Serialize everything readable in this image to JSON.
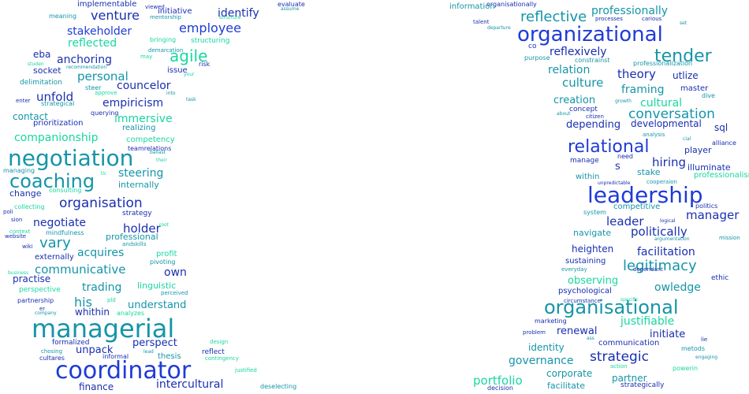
{
  "palette": {
    "blue": "#1f3bd6",
    "teal": "#1595a8",
    "mint": "#18d7a0",
    "navy": "#1a2fb0"
  },
  "words": [
    {
      "t": "implementable",
      "c": "navy"
    },
    {
      "t": "evaluate",
      "c": "navy"
    },
    {
      "t": "assume",
      "c": "teal"
    },
    {
      "t": "meaning",
      "c": "teal"
    },
    {
      "t": "mentorship",
      "c": "teal"
    },
    {
      "t": "viewed",
      "c": "navy"
    },
    {
      "t": "venture",
      "c": "navy"
    },
    {
      "t": "initiative",
      "c": "navy"
    },
    {
      "t": "identify",
      "c": "navy"
    },
    {
      "t": "structure",
      "c": "mint"
    },
    {
      "t": "employee",
      "c": "blue"
    },
    {
      "t": "stakeholder",
      "c": "blue"
    },
    {
      "t": "reflected",
      "c": "mint"
    },
    {
      "t": "bringing",
      "c": "mint"
    },
    {
      "t": "structuring",
      "c": "mint"
    },
    {
      "t": "agile",
      "c": "mint"
    },
    {
      "t": "eba",
      "c": "navy"
    },
    {
      "t": "demarcation",
      "c": "teal"
    },
    {
      "t": "anchoring",
      "c": "navy"
    },
    {
      "t": "may",
      "c": "mint"
    },
    {
      "t": "risk",
      "c": "navy"
    },
    {
      "t": "studen",
      "c": "mint"
    },
    {
      "t": "recommendation",
      "c": "teal"
    },
    {
      "t": "personal",
      "c": "teal"
    },
    {
      "t": "socket",
      "c": "navy"
    },
    {
      "t": "issue",
      "c": "navy"
    },
    {
      "t": "your",
      "c": "mint"
    },
    {
      "t": "delimitation",
      "c": "teal"
    },
    {
      "t": "councelor",
      "c": "navy"
    },
    {
      "t": "steer",
      "c": "teal"
    },
    {
      "t": "approve",
      "c": "mint"
    },
    {
      "t": "unfold",
      "c": "navy"
    },
    {
      "t": "into",
      "c": "teal"
    },
    {
      "t": "enter",
      "c": "navy"
    },
    {
      "t": "strategical",
      "c": "teal"
    },
    {
      "t": "empiricism",
      "c": "navy"
    },
    {
      "t": "task",
      "c": "teal"
    },
    {
      "t": "contact",
      "c": "teal"
    },
    {
      "t": "querying",
      "c": "navy"
    },
    {
      "t": "immersive",
      "c": "mint"
    },
    {
      "t": "prioritization",
      "c": "navy"
    },
    {
      "t": "realizing",
      "c": "teal"
    },
    {
      "t": "negotiation",
      "c": "teal"
    },
    {
      "t": "companionship",
      "c": "mint"
    },
    {
      "t": "competency",
      "c": "mint"
    },
    {
      "t": "teamrelations",
      "c": "navy"
    },
    {
      "t": "ballast",
      "c": "teal"
    },
    {
      "t": "coaching",
      "c": "teal"
    },
    {
      "t": "their",
      "c": "mint"
    },
    {
      "t": "managing",
      "c": "teal"
    },
    {
      "t": "steering",
      "c": "teal"
    },
    {
      "t": "tic",
      "c": "mint"
    },
    {
      "t": "internally",
      "c": "teal"
    },
    {
      "t": "change",
      "c": "navy"
    },
    {
      "t": "consulting",
      "c": "mint"
    },
    {
      "t": "organisation",
      "c": "navy"
    },
    {
      "t": "collecting",
      "c": "mint"
    },
    {
      "t": "poli",
      "c": "navy"
    },
    {
      "t": "strategy",
      "c": "navy"
    },
    {
      "t": "sion",
      "c": "navy"
    },
    {
      "t": "negotiate",
      "c": "navy"
    },
    {
      "t": "holder",
      "c": "navy"
    },
    {
      "t": "root",
      "c": "mint"
    },
    {
      "t": "context",
      "c": "mint"
    },
    {
      "t": "mindfulness",
      "c": "teal"
    },
    {
      "t": "website",
      "c": "navy"
    },
    {
      "t": "professional",
      "c": "teal"
    },
    {
      "t": "vary",
      "c": "teal"
    },
    {
      "t": "andskills",
      "c": "teal"
    },
    {
      "t": "acquires",
      "c": "teal"
    },
    {
      "t": "profit",
      "c": "mint"
    },
    {
      "t": "wiki",
      "c": "navy"
    },
    {
      "t": "externally",
      "c": "navy"
    },
    {
      "t": "pivoting",
      "c": "teal"
    },
    {
      "t": "communicative",
      "c": "teal"
    },
    {
      "t": "own",
      "c": "navy"
    },
    {
      "t": "business",
      "c": "mint"
    },
    {
      "t": "practise",
      "c": "navy"
    },
    {
      "t": "linguistic",
      "c": "mint"
    },
    {
      "t": "trading",
      "c": "teal"
    },
    {
      "t": "perspective",
      "c": "mint"
    },
    {
      "t": "perceived",
      "c": "teal"
    },
    {
      "t": "partnership",
      "c": "navy"
    },
    {
      "t": "his",
      "c": "teal"
    },
    {
      "t": "pld",
      "c": "mint"
    },
    {
      "t": "understand",
      "c": "teal"
    },
    {
      "t": "er",
      "c": "navy"
    },
    {
      "t": "company",
      "c": "teal"
    },
    {
      "t": "whithin",
      "c": "navy"
    },
    {
      "t": "analyzes",
      "c": "mint"
    },
    {
      "t": "managerial",
      "c": "teal"
    },
    {
      "t": "formalized",
      "c": "navy"
    },
    {
      "t": "perspect",
      "c": "navy"
    },
    {
      "t": "design",
      "c": "mint"
    },
    {
      "t": "chosing",
      "c": "teal"
    },
    {
      "t": "unpack",
      "c": "navy"
    },
    {
      "t": "lead",
      "c": "teal"
    },
    {
      "t": "reflect",
      "c": "navy"
    },
    {
      "t": "cultares",
      "c": "navy"
    },
    {
      "t": "informal",
      "c": "navy"
    },
    {
      "t": "thesis",
      "c": "teal"
    },
    {
      "t": "contingency",
      "c": "mint"
    },
    {
      "t": "coordinator",
      "c": "blue"
    },
    {
      "t": "justified",
      "c": "mint"
    },
    {
      "t": "intercultural",
      "c": "navy"
    },
    {
      "t": "finance",
      "c": "navy"
    },
    {
      "t": "deselecting",
      "c": "teal"
    },
    {
      "t": "organisationally",
      "c": "navy"
    },
    {
      "t": "information",
      "c": "teal"
    },
    {
      "t": "professionally",
      "c": "teal"
    },
    {
      "t": "talent",
      "c": "navy"
    },
    {
      "t": "departure",
      "c": "teal"
    },
    {
      "t": "reflective",
      "c": "teal"
    },
    {
      "t": "processes",
      "c": "navy"
    },
    {
      "t": "carious",
      "c": "navy"
    },
    {
      "t": "set",
      "c": "teal"
    },
    {
      "t": "organizational",
      "c": "blue"
    },
    {
      "t": "co",
      "c": "navy"
    },
    {
      "t": "purpose",
      "c": "teal"
    },
    {
      "t": "reflexively",
      "c": "navy"
    },
    {
      "t": "tender",
      "c": "teal"
    },
    {
      "t": "constrainst",
      "c": "teal"
    },
    {
      "t": "professionalization",
      "c": "teal"
    },
    {
      "t": "relation",
      "c": "teal"
    },
    {
      "t": "theory",
      "c": "navy"
    },
    {
      "t": "utlize",
      "c": "navy"
    },
    {
      "t": "culture",
      "c": "teal"
    },
    {
      "t": "framing",
      "c": "teal"
    },
    {
      "t": "master",
      "c": "navy"
    },
    {
      "t": "growth",
      "c": "teal"
    },
    {
      "t": "dive",
      "c": "teal"
    },
    {
      "t": "creation",
      "c": "teal"
    },
    {
      "t": "cultural",
      "c": "mint"
    },
    {
      "t": "concept",
      "c": "navy"
    },
    {
      "t": "about",
      "c": "teal"
    },
    {
      "t": "citizen",
      "c": "navy"
    },
    {
      "t": "conversation",
      "c": "teal"
    },
    {
      "t": "depending",
      "c": "navy"
    },
    {
      "t": "developmental",
      "c": "navy"
    },
    {
      "t": "sql",
      "c": "navy"
    },
    {
      "t": "analysis",
      "c": "teal"
    },
    {
      "t": "cial",
      "c": "teal"
    },
    {
      "t": "relational",
      "c": "blue"
    },
    {
      "t": "alliance",
      "c": "navy"
    },
    {
      "t": "player",
      "c": "navy"
    },
    {
      "t": "need",
      "c": "navy"
    },
    {
      "t": "hiring",
      "c": "navy"
    },
    {
      "t": "manage",
      "c": "navy"
    },
    {
      "t": "s",
      "c": "navy"
    },
    {
      "t": "illuminate",
      "c": "navy"
    },
    {
      "t": "stake",
      "c": "teal"
    },
    {
      "t": "professionalism",
      "c": "mint"
    },
    {
      "t": "within",
      "c": "teal"
    },
    {
      "t": "unpredictable",
      "c": "navy"
    },
    {
      "t": "cooperaion",
      "c": "teal"
    },
    {
      "t": "leadership",
      "c": "blue"
    },
    {
      "t": "competitive",
      "c": "teal"
    },
    {
      "t": "politics",
      "c": "navy"
    },
    {
      "t": "manager",
      "c": "navy"
    },
    {
      "t": "system",
      "c": "teal"
    },
    {
      "t": "leader",
      "c": "navy"
    },
    {
      "t": "logical",
      "c": "navy"
    },
    {
      "t": "navigate",
      "c": "teal"
    },
    {
      "t": "politically",
      "c": "navy"
    },
    {
      "t": "argumentation",
      "c": "teal"
    },
    {
      "t": "mission",
      "c": "teal"
    },
    {
      "t": "facilitation",
      "c": "navy"
    },
    {
      "t": "heighten",
      "c": "navy"
    },
    {
      "t": "legitimacy",
      "c": "teal"
    },
    {
      "t": "sustaining",
      "c": "navy"
    },
    {
      "t": "everyday",
      "c": "teal"
    },
    {
      "t": "dependant",
      "c": "navy"
    },
    {
      "t": "ethic",
      "c": "navy"
    },
    {
      "t": "owledge",
      "c": "teal"
    },
    {
      "t": "observing",
      "c": "mint"
    },
    {
      "t": "psychological",
      "c": "navy"
    },
    {
      "t": "circumstance",
      "c": "navy"
    },
    {
      "t": "specific",
      "c": "mint"
    },
    {
      "t": "organisational",
      "c": "teal"
    },
    {
      "t": "marketing",
      "c": "navy"
    },
    {
      "t": "justifiable",
      "c": "mint"
    },
    {
      "t": "renewal",
      "c": "navy"
    },
    {
      "t": "initiate",
      "c": "navy"
    },
    {
      "t": "problem",
      "c": "navy"
    },
    {
      "t": "ass",
      "c": "teal"
    },
    {
      "t": "communication",
      "c": "navy"
    },
    {
      "t": "lie",
      "c": "navy"
    },
    {
      "t": "identity",
      "c": "teal"
    },
    {
      "t": "metods",
      "c": "teal"
    },
    {
      "t": "strategic",
      "c": "navy"
    },
    {
      "t": "engaging",
      "c": "teal"
    },
    {
      "t": "governance",
      "c": "teal"
    },
    {
      "t": "action",
      "c": "mint"
    },
    {
      "t": "powerin",
      "c": "mint"
    },
    {
      "t": "corporate",
      "c": "teal"
    },
    {
      "t": "partner",
      "c": "teal"
    },
    {
      "t": "portfolio",
      "c": "mint"
    },
    {
      "t": "facilitate",
      "c": "teal"
    },
    {
      "t": "strategically",
      "c": "navy"
    },
    {
      "t": "decision",
      "c": "navy"
    }
  ]
}
